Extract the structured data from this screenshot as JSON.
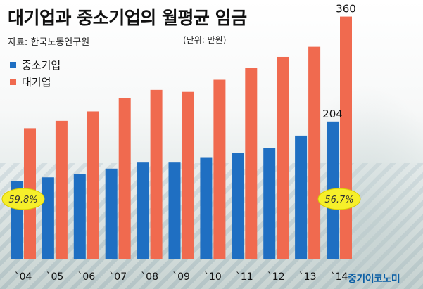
{
  "title": "대기업과 중소기업의 월평균 임금",
  "source": "자료: 한국노동연구원",
  "unit": "(단위: 만원)",
  "logo": "중기이코노미",
  "colors": {
    "small": "#1f6fc2",
    "large": "#f06a4f",
    "highlight": "#f6ef2a"
  },
  "chart_data": {
    "type": "bar",
    "categories": [
      "`04",
      "`05",
      "`06",
      "`07",
      "`08",
      "`09",
      "`10",
      "`11",
      "`12",
      "`13",
      "`14"
    ],
    "series": [
      {
        "name": "중소기업",
        "color": "#1f6fc2",
        "values": [
          116,
          121,
          126,
          134,
          143,
          143,
          151,
          157,
          165,
          183,
          204
        ]
      },
      {
        "name": "대기업",
        "color": "#f06a4f",
        "values": [
          194,
          205,
          219,
          239,
          251,
          248,
          266,
          284,
          300,
          315,
          360
        ]
      }
    ],
    "data_labels": [
      {
        "category": "`14",
        "series": "중소기업",
        "text": "204"
      },
      {
        "category": "`14",
        "series": "대기업",
        "text": "360"
      }
    ],
    "annotations": [
      {
        "category": "`04",
        "text": "59.8%"
      },
      {
        "category": "`14",
        "text": "56.7%"
      }
    ],
    "ylim": [
      0,
      370
    ],
    "grid": false,
    "legend_position": "top-left"
  }
}
